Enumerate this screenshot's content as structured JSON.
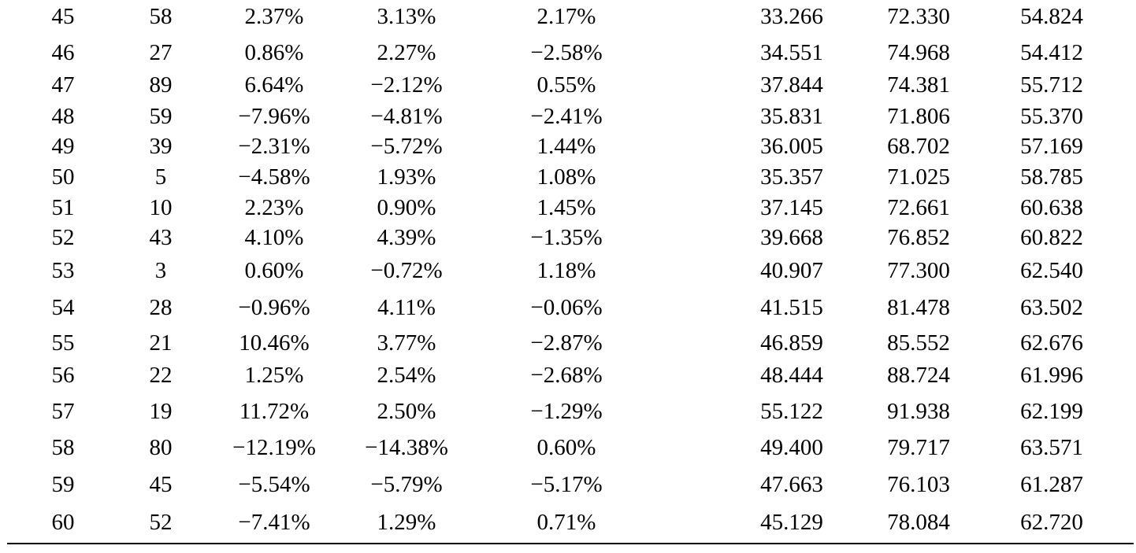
{
  "table": {
    "rows": [
      [
        "45",
        "58",
        "2.37%",
        "3.13%",
        "2.17%",
        "33.266",
        "72.330",
        "54.824"
      ],
      [
        "46",
        "27",
        "0.86%",
        "2.27%",
        "−2.58%",
        "34.551",
        "74.968",
        "54.412"
      ],
      [
        "47",
        "89",
        "6.64%",
        "−2.12%",
        "0.55%",
        "37.844",
        "74.381",
        "55.712"
      ],
      [
        "48",
        "59",
        "−7.96%",
        "−4.81%",
        "−2.41%",
        "35.831",
        "71.806",
        "55.370"
      ],
      [
        "49",
        "39",
        "−2.31%",
        "−5.72%",
        "1.44%",
        "36.005",
        "68.702",
        "57.169"
      ],
      [
        "50",
        "5",
        "−4.58%",
        "1.93%",
        "1.08%",
        "35.357",
        "71.025",
        "58.785"
      ],
      [
        "51",
        "10",
        "2.23%",
        "0.90%",
        "1.45%",
        "37.145",
        "72.661",
        "60.638"
      ],
      [
        "52",
        "43",
        "4.10%",
        "4.39%",
        "−1.35%",
        "39.668",
        "76.852",
        "60.822"
      ],
      [
        "53",
        "3",
        "0.60%",
        "−0.72%",
        "1.18%",
        "40.907",
        "77.300",
        "62.540"
      ],
      [
        "54",
        "28",
        "−0.96%",
        "4.11%",
        "−0.06%",
        "41.515",
        "81.478",
        "63.502"
      ],
      [
        "55",
        "21",
        "10.46%",
        "3.77%",
        "−2.87%",
        "46.859",
        "85.552",
        "62.676"
      ],
      [
        "56",
        "22",
        "1.25%",
        "2.54%",
        "−2.68%",
        "48.444",
        "88.724",
        "61.996"
      ],
      [
        "57",
        "19",
        "11.72%",
        "2.50%",
        "−1.29%",
        "55.122",
        "91.938",
        "62.199"
      ],
      [
        "58",
        "80",
        "−12.19%",
        "−14.38%",
        "0.60%",
        "49.400",
        "79.717",
        "63.571"
      ],
      [
        "59",
        "45",
        "−5.54%",
        "−5.79%",
        "−5.17%",
        "47.663",
        "76.103",
        "61.287"
      ],
      [
        "60",
        "52",
        "−7.41%",
        "1.29%",
        "0.71%",
        "45.129",
        "78.084",
        "62.720"
      ]
    ]
  }
}
